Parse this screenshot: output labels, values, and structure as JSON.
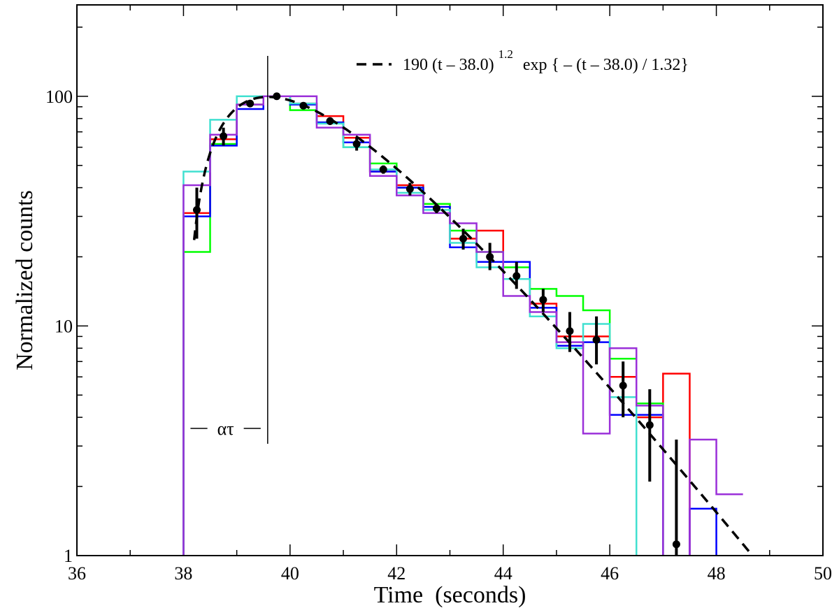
{
  "chart_data": {
    "type": "line",
    "xlabel": "Time  (seconds)",
    "ylabel": "Normalized counts",
    "xlim": [
      36,
      50
    ],
    "ylim": [
      1,
      250
    ],
    "yscale": "log",
    "grid": false,
    "legend_position": "top-right",
    "x_ticks": [
      36,
      38,
      40,
      42,
      44,
      46,
      48,
      50
    ],
    "x_tick_labels": [
      "36",
      "38",
      "40",
      "42",
      "44",
      "46",
      "48",
      "50"
    ],
    "y_ticks": [
      1,
      10,
      100
    ],
    "y_tick_labels": [
      "1",
      "10",
      "100"
    ],
    "fit_curve": {
      "name": "190 (t – 38.0) 1.2 exp { – (t – 38.0) / 1.32}",
      "legend_main": "190 (t – 38.0)",
      "legend_exponent": "1.2",
      "legend_tail": "exp { – (t – 38.0) / 1.32}",
      "amplitude": 190,
      "t0": 38.0,
      "alpha": 1.2,
      "tau": 1.32,
      "t_range": [
        38.2,
        48.65
      ],
      "color": "#000000"
    },
    "annotation": {
      "text": "ατ",
      "x_start": 38.0,
      "x_peak": 39.58
    },
    "histogram_bin_edges": [
      38.0,
      38.5,
      39.0,
      39.5,
      40.0,
      40.5,
      41.0,
      41.5,
      42.0,
      42.5,
      43.0,
      43.5,
      44.0,
      44.5,
      45.0,
      45.5,
      46.0,
      46.5,
      47.0,
      47.5,
      48.0,
      48.5
    ],
    "histograms": [
      {
        "color": "#ff0000",
        "values": [
          31,
          65,
          92,
          100,
          93,
          82,
          66,
          47,
          41,
          34,
          24,
          26,
          16,
          12.5,
          9,
          9,
          6,
          4,
          6.2,
          null,
          null
        ]
      },
      {
        "color": "#00ff00",
        "values": [
          21,
          62,
          92,
          100,
          87,
          77,
          60,
          51,
          40,
          34,
          26,
          21,
          18,
          14.5,
          13.5,
          11.7,
          7.2,
          4.6,
          null,
          null,
          null
        ]
      },
      {
        "color": "#0000ff",
        "values": [
          30,
          61,
          88,
          100,
          92,
          77,
          63,
          47,
          40,
          33,
          22,
          19,
          19,
          12,
          8.2,
          8.5,
          4.1,
          4.1,
          null,
          1.6,
          null
        ]
      },
      {
        "color": "#40e0d0",
        "values": [
          47,
          79,
          100,
          100,
          93,
          76,
          60,
          48,
          38,
          32,
          23,
          18,
          16,
          11,
          8,
          10.2,
          4.9,
          null,
          null,
          null,
          null
        ]
      },
      {
        "color": "#9b30d9",
        "values": [
          41,
          68,
          92,
          100,
          100,
          73,
          68,
          45,
          37,
          31,
          28,
          21,
          13.5,
          11.5,
          8.5,
          3.4,
          8,
          4.5,
          null,
          3.2,
          1.85
        ]
      }
    ],
    "points": [
      {
        "x": 38.25,
        "y": 32,
        "ylo": 24,
        "yhi": 40
      },
      {
        "x": 38.75,
        "y": 67,
        "ylo": 61,
        "yhi": 73
      },
      {
        "x": 39.25,
        "y": 93,
        "ylo": 90,
        "yhi": 96
      },
      {
        "x": 39.75,
        "y": 100,
        "ylo": 98,
        "yhi": 102
      },
      {
        "x": 40.25,
        "y": 91,
        "ylo": 88,
        "yhi": 94
      },
      {
        "x": 40.75,
        "y": 78,
        "ylo": 75,
        "yhi": 81
      },
      {
        "x": 41.25,
        "y": 62,
        "ylo": 58,
        "yhi": 66
      },
      {
        "x": 41.75,
        "y": 48,
        "ylo": 46,
        "yhi": 50
      },
      {
        "x": 42.25,
        "y": 39.5,
        "ylo": 37,
        "yhi": 42
      },
      {
        "x": 42.75,
        "y": 32.5,
        "ylo": 31,
        "yhi": 34
      },
      {
        "x": 43.25,
        "y": 24,
        "ylo": 21.5,
        "yhi": 26.5
      },
      {
        "x": 43.75,
        "y": 20,
        "ylo": 17.5,
        "yhi": 23
      },
      {
        "x": 44.25,
        "y": 16.5,
        "ylo": 14.5,
        "yhi": 19
      },
      {
        "x": 44.75,
        "y": 13,
        "ylo": 11.5,
        "yhi": 14.5
      },
      {
        "x": 45.25,
        "y": 9.5,
        "ylo": 7.7,
        "yhi": 11.5
      },
      {
        "x": 45.75,
        "y": 8.7,
        "ylo": 6.8,
        "yhi": 11
      },
      {
        "x": 46.25,
        "y": 5.5,
        "ylo": 4.0,
        "yhi": 7.0
      },
      {
        "x": 46.75,
        "y": 3.7,
        "ylo": 2.1,
        "yhi": 5.3
      },
      {
        "x": 47.25,
        "y": 1.12,
        "ylo": 1.0,
        "yhi": 3.2
      }
    ]
  }
}
